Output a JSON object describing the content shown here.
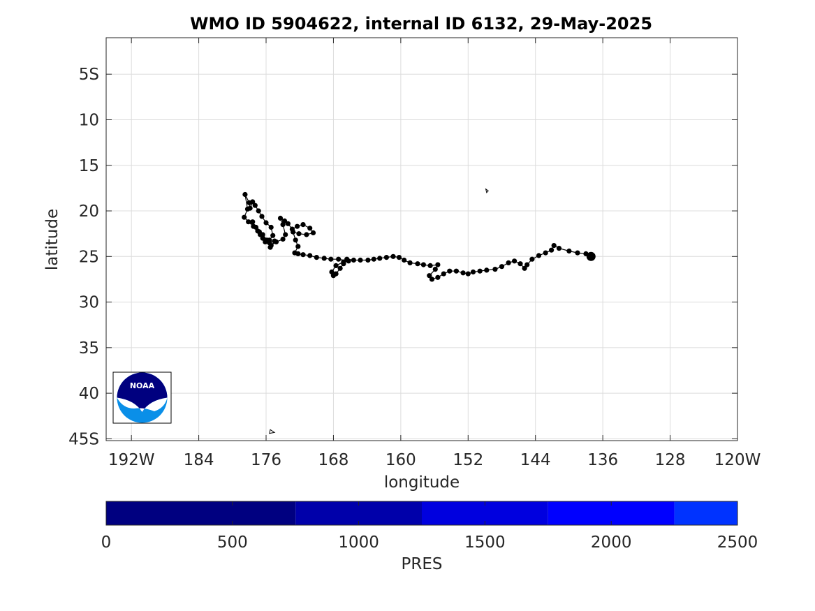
{
  "chart_data": {
    "type": "scatter",
    "title": "WMO ID 5904622, internal ID 6132, 29-May-2025",
    "xlabel": "longitude",
    "ylabel": "latitude",
    "xlim": [
      195,
      120
    ],
    "ylim": [
      1,
      45.2
    ],
    "x_ticks": [
      {
        "value": 192,
        "label": "192W"
      },
      {
        "value": 184,
        "label": "184"
      },
      {
        "value": 176,
        "label": "176"
      },
      {
        "value": 168,
        "label": "168"
      },
      {
        "value": 160,
        "label": "160"
      },
      {
        "value": 152,
        "label": "152"
      },
      {
        "value": 144,
        "label": "144"
      },
      {
        "value": 136,
        "label": "136"
      },
      {
        "value": 128,
        "label": "128"
      },
      {
        "value": 120,
        "label": "120W"
      }
    ],
    "y_ticks": [
      {
        "value": 5,
        "label": "5S"
      },
      {
        "value": 10,
        "label": "10"
      },
      {
        "value": 15,
        "label": "15"
      },
      {
        "value": 20,
        "label": "20"
      },
      {
        "value": 25,
        "label": "25"
      },
      {
        "value": 30,
        "label": "30"
      },
      {
        "value": 35,
        "label": "35"
      },
      {
        "value": 40,
        "label": "40"
      },
      {
        "value": 45,
        "label": "45S"
      }
    ],
    "grid": true,
    "track": [
      [
        137.4,
        25.0
      ],
      [
        138.0,
        24.7
      ],
      [
        139.0,
        24.6
      ],
      [
        140.0,
        24.4
      ],
      [
        141.2,
        24.1
      ],
      [
        141.8,
        23.8
      ],
      [
        142.1,
        24.3
      ],
      [
        142.8,
        24.6
      ],
      [
        143.6,
        24.9
      ],
      [
        144.4,
        25.3
      ],
      [
        145.0,
        25.9
      ],
      [
        145.3,
        26.3
      ],
      [
        145.8,
        25.8
      ],
      [
        146.5,
        25.5
      ],
      [
        147.2,
        25.7
      ],
      [
        148.0,
        26.1
      ],
      [
        148.8,
        26.4
      ],
      [
        149.8,
        26.5
      ],
      [
        150.6,
        26.6
      ],
      [
        151.4,
        26.7
      ],
      [
        152.0,
        26.9
      ],
      [
        152.6,
        26.8
      ],
      [
        153.4,
        26.6
      ],
      [
        154.2,
        26.6
      ],
      [
        154.9,
        26.9
      ],
      [
        155.6,
        27.3
      ],
      [
        156.3,
        27.5
      ],
      [
        156.6,
        27.1
      ],
      [
        155.9,
        26.4
      ],
      [
        155.6,
        25.9
      ],
      [
        156.5,
        26.0
      ],
      [
        157.3,
        25.9
      ],
      [
        158.0,
        25.8
      ],
      [
        158.9,
        25.7
      ],
      [
        159.6,
        25.4
      ],
      [
        160.2,
        25.1
      ],
      [
        160.9,
        25.0
      ],
      [
        161.7,
        25.1
      ],
      [
        162.5,
        25.2
      ],
      [
        163.2,
        25.3
      ],
      [
        163.9,
        25.4
      ],
      [
        164.8,
        25.4
      ],
      [
        165.6,
        25.4
      ],
      [
        166.4,
        25.3
      ],
      [
        166.8,
        25.8
      ],
      [
        167.2,
        26.3
      ],
      [
        167.7,
        26.9
      ],
      [
        168.0,
        27.1
      ],
      [
        168.2,
        26.7
      ],
      [
        167.7,
        26.0
      ],
      [
        166.8,
        25.6
      ],
      [
        166.2,
        25.5
      ],
      [
        167.4,
        25.3
      ],
      [
        168.3,
        25.3
      ],
      [
        169.1,
        25.2
      ],
      [
        170.0,
        25.1
      ],
      [
        170.8,
        24.9
      ],
      [
        171.6,
        24.8
      ],
      [
        172.2,
        24.7
      ],
      [
        172.6,
        24.6
      ],
      [
        172.2,
        23.9
      ],
      [
        172.5,
        23.2
      ],
      [
        172.8,
        22.3
      ],
      [
        172.1,
        22.5
      ],
      [
        171.2,
        22.6
      ],
      [
        170.4,
        22.4
      ],
      [
        170.8,
        21.9
      ],
      [
        171.6,
        21.5
      ],
      [
        172.3,
        21.7
      ],
      [
        172.9,
        22.0
      ],
      [
        173.4,
        21.4
      ],
      [
        173.8,
        21.1
      ],
      [
        174.3,
        20.8
      ],
      [
        174.0,
        21.5
      ],
      [
        173.7,
        22.6
      ],
      [
        174.0,
        23.1
      ],
      [
        174.8,
        23.4
      ],
      [
        175.4,
        23.8
      ],
      [
        175.6,
        23.2
      ],
      [
        175.2,
        22.7
      ],
      [
        175.4,
        21.8
      ],
      [
        176.0,
        21.3
      ],
      [
        176.5,
        20.6
      ],
      [
        176.9,
        20.0
      ],
      [
        177.3,
        19.4
      ],
      [
        177.6,
        19.0
      ],
      [
        177.9,
        19.7
      ],
      [
        178.0,
        19.1
      ],
      [
        178.5,
        18.2
      ],
      [
        178.2,
        19.8
      ],
      [
        178.6,
        20.7
      ],
      [
        178.1,
        21.2
      ],
      [
        177.5,
        21.7
      ],
      [
        177.0,
        22.2
      ],
      [
        176.7,
        22.6
      ],
      [
        176.4,
        23.0
      ],
      [
        176.1,
        23.4
      ],
      [
        175.6,
        23.5
      ],
      [
        175.0,
        23.3
      ],
      [
        175.5,
        24.0
      ],
      [
        175.9,
        23.2
      ],
      [
        176.4,
        22.6
      ],
      [
        176.8,
        22.3
      ],
      [
        177.2,
        21.8
      ],
      [
        177.6,
        21.2
      ]
    ],
    "start_point": [
      137.4,
      25.0
    ],
    "coastlines": [
      {
        "name": "islet-north",
        "points": [
          [
            149.9,
            17.6
          ],
          [
            149.6,
            17.8
          ],
          [
            149.8,
            18.0
          ],
          [
            149.9,
            17.6
          ]
        ]
      },
      {
        "name": "islet-south",
        "points": [
          [
            175.5,
            44.0
          ],
          [
            175.0,
            44.3
          ],
          [
            175.6,
            44.4
          ],
          [
            175.5,
            44.0
          ]
        ]
      }
    ],
    "colorbar": {
      "label": "PRES",
      "range": [
        0,
        2500
      ],
      "ticks": [
        0,
        500,
        1000,
        1500,
        2000,
        2500
      ],
      "segments": [
        {
          "from": 0,
          "to": 750,
          "color": "#000080"
        },
        {
          "from": 750,
          "to": 1250,
          "color": "#0000AA"
        },
        {
          "from": 1250,
          "to": 1750,
          "color": "#0000DF"
        },
        {
          "from": 1750,
          "to": 2250,
          "color": "#0000FF"
        },
        {
          "from": 2250,
          "to": 2500,
          "color": "#0033FF"
        }
      ]
    },
    "logo": {
      "text": "NOAA",
      "colors": {
        "navy": "#00007F",
        "sky": "#0A8FE8"
      }
    }
  }
}
